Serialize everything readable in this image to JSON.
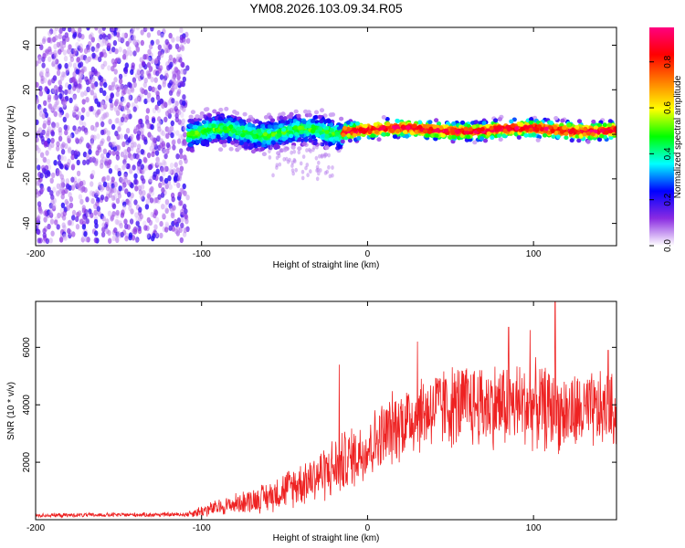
{
  "title": "YM08.2026.103.09.34.R05",
  "chart_data": [
    {
      "type": "heatmap",
      "xlabel": "Height of straight line (km)",
      "ylabel": "Frequency (Hz)",
      "xlim": [
        -200,
        150
      ],
      "ylim": [
        -50,
        48
      ],
      "xticks": [
        -200,
        -100,
        0,
        100
      ],
      "yticks": [
        -40,
        -20,
        0,
        20,
        40
      ],
      "colorbar": {
        "label": "Normalized spectral amplitude",
        "range": [
          0.0,
          0.95
        ],
        "ticks": [
          0.0,
          0.2,
          0.4,
          0.6,
          0.8
        ],
        "tick_labels": [
          "0.0",
          "0.2",
          "0.4",
          "0.6",
          "0.8"
        ],
        "colormap": [
          "#ffffff",
          "#8a2be2",
          "#0000ff",
          "#00ffff",
          "#00ff00",
          "#ffff00",
          "#ff8000",
          "#ff0000",
          "#ff0080"
        ]
      },
      "regions": [
        {
          "x_range": [
            -200,
            -108
          ],
          "description_level": "scattered",
          "freq_center": 0,
          "freq_spread": 48,
          "amplitude": [
            0.05,
            0.2
          ]
        },
        {
          "x_range": [
            -108,
            -15
          ],
          "description_level": "band",
          "freq_center": 1,
          "freq_spread": 6,
          "amplitude": [
            0.2,
            0.5
          ]
        },
        {
          "x_range": [
            -15,
            150
          ],
          "description_level": "narrow",
          "freq_center": 2,
          "freq_spread": 3,
          "amplitude": [
            0.7,
            0.95
          ]
        }
      ]
    },
    {
      "type": "line",
      "xlabel": "Height of straight line (km)",
      "ylabel": "SNR (10 * v/v)",
      "xlim": [
        -200,
        150
      ],
      "ylim": [
        0,
        7600
      ],
      "xticks": [
        -200,
        -100,
        0,
        100
      ],
      "yticks": [
        2000,
        4000,
        6000
      ],
      "color": "#ee2222",
      "envelope": [
        {
          "x": -200,
          "mean": 150,
          "spread": 80
        },
        {
          "x": -110,
          "mean": 180,
          "spread": 90
        },
        {
          "x": -100,
          "mean": 300,
          "spread": 250
        },
        {
          "x": -80,
          "mean": 550,
          "spread": 400
        },
        {
          "x": -60,
          "mean": 800,
          "spread": 600
        },
        {
          "x": -40,
          "mean": 1300,
          "spread": 900
        },
        {
          "x": -20,
          "mean": 1800,
          "spread": 1200
        },
        {
          "x": 0,
          "mean": 2500,
          "spread": 1300
        },
        {
          "x": 20,
          "mean": 3400,
          "spread": 1500
        },
        {
          "x": 40,
          "mean": 3900,
          "spread": 1600
        },
        {
          "x": 60,
          "mean": 4000,
          "spread": 1700
        },
        {
          "x": 80,
          "mean": 4000,
          "spread": 1700
        },
        {
          "x": 100,
          "mean": 4000,
          "spread": 1700
        },
        {
          "x": 120,
          "mean": 3700,
          "spread": 1600
        },
        {
          "x": 150,
          "mean": 3800,
          "spread": 1500
        }
      ],
      "peaks": [
        {
          "x": -17,
          "y": 5400
        },
        {
          "x": 30,
          "y": 6200
        },
        {
          "x": 85,
          "y": 6700
        },
        {
          "x": 98,
          "y": 6600
        },
        {
          "x": 113,
          "y": 7600
        },
        {
          "x": 145,
          "y": 5900
        }
      ]
    }
  ]
}
